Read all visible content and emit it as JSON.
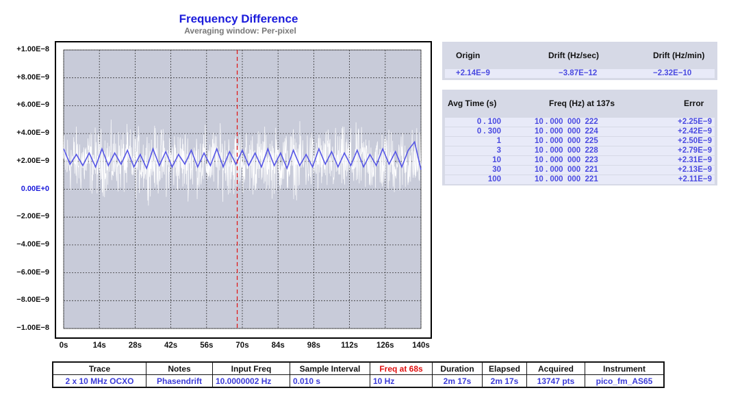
{
  "chart_data": {
    "type": "line",
    "title": "Frequency Difference",
    "subtitle": "Averaging window: Per-pixel",
    "y_tick_labels": [
      "+1.00E−8",
      "+8.00E−9",
      "+6.00E−9",
      "+4.00E−9",
      "+2.00E−9",
      "0.00E+0",
      "−2.00E−9",
      "−4.00E−9",
      "−6.00E−9",
      "−8.00E−9",
      "−1.00E−8"
    ],
    "x_tick_labels": [
      "0s",
      "14s",
      "28s",
      "42s",
      "56s",
      "70s",
      "84s",
      "98s",
      "112s",
      "126s",
      "140s"
    ],
    "xlim": [
      0,
      140
    ],
    "ylim": [
      -1e-08,
      1e-08
    ],
    "grid": true,
    "marker_x": 68,
    "series": [
      {
        "kind": "raw",
        "color": "#ffffff",
        "y_center": 2e-09,
        "y_min": -1.3e-09,
        "y_max": 5.4e-09
      },
      {
        "kind": "averaged",
        "color": "#5555e6",
        "x": [
          0,
          2.5,
          5,
          7.5,
          10,
          12.5,
          15,
          17.5,
          20,
          22.5,
          25,
          27.5,
          30,
          32.5,
          35,
          37.5,
          40,
          42.5,
          45,
          47.5,
          50,
          52.5,
          55,
          57.5,
          60,
          62.5,
          65,
          67.5,
          70,
          72.5,
          75,
          77.5,
          80,
          82.5,
          85,
          87.5,
          90,
          92.5,
          95,
          97.5,
          100,
          102.5,
          105,
          107.5,
          110,
          112.5,
          115,
          117.5,
          120,
          122.5,
          125,
          127.5,
          130,
          132.5,
          135,
          137.5,
          140
        ],
        "y": [
          2.9e-09,
          1.8e-09,
          2.5e-09,
          1.7e-09,
          2.6e-09,
          1.6e-09,
          2.9e-09,
          1.7e-09,
          2.6e-09,
          1.8e-09,
          2.8e-09,
          1.6e-09,
          2.5e-09,
          1.5e-09,
          2.9e-09,
          1.7e-09,
          2.7e-09,
          1.6e-09,
          2.5e-09,
          1.8e-09,
          2.8e-09,
          1.6e-09,
          2.6e-09,
          1.7e-09,
          2.9e-09,
          1.6e-09,
          2.7e-09,
          1.8e-09,
          2.8e-09,
          1.7e-09,
          2.6e-09,
          1.6e-09,
          2.9e-09,
          1.7e-09,
          2.6e-09,
          1.5e-09,
          2.8e-09,
          1.7e-09,
          2.5e-09,
          1.6e-09,
          2.9e-09,
          1.8e-09,
          2.7e-09,
          1.6e-09,
          2.6e-09,
          1.7e-09,
          2.8e-09,
          1.6e-09,
          2.5e-09,
          1.7e-09,
          2.9e-09,
          1.8e-09,
          2.7e-09,
          1.6e-09,
          2.8e-09,
          3.4e-09,
          1.4e-09
        ]
      }
    ],
    "colors": {
      "plot_bg": "#c8cbd9",
      "grid": "#333333",
      "marker": "#e01010"
    }
  },
  "drift": {
    "headers": [
      "Origin",
      "Drift (Hz/sec)",
      "Drift (Hz/min)"
    ],
    "values": [
      "+2.14E−9",
      "−3.87E−12",
      "−2.32E−10"
    ]
  },
  "avg": {
    "headers": [
      "Avg Time (s)",
      "Freq (Hz) at 137s",
      "Error"
    ],
    "rows": [
      {
        "t": "0 . 100",
        "f": "10 . 000  000  222",
        "e": "+2.25E−9"
      },
      {
        "t": "0 . 300",
        "f": "10 . 000  000  224",
        "e": "+2.42E−9"
      },
      {
        "t": "1",
        "f": "10 . 000  000  225",
        "e": "+2.50E−9"
      },
      {
        "t": "3",
        "f": "10 . 000  000  228",
        "e": "+2.79E−9"
      },
      {
        "t": "10",
        "f": "10 . 000  000  223",
        "e": "+2.31E−9"
      },
      {
        "t": "30",
        "f": "10 . 000  000  221",
        "e": "+2.13E−9"
      },
      {
        "t": "100",
        "f": "10 . 000  000  221",
        "e": "+2.11E−9"
      }
    ]
  },
  "info": {
    "headers": [
      "Trace",
      "Notes",
      "Input Freq",
      "Sample Interval",
      "Freq at 68s",
      "Duration",
      "Elapsed",
      "Acquired",
      "Instrument"
    ],
    "values": [
      "2 x 10 MHz OCXO",
      "Phasendrift",
      "10.0000002 Hz",
      "0.010 s",
      "10 Hz",
      "2m 17s",
      "2m 17s",
      "13747 pts",
      "pico_fm_AS65"
    ]
  }
}
